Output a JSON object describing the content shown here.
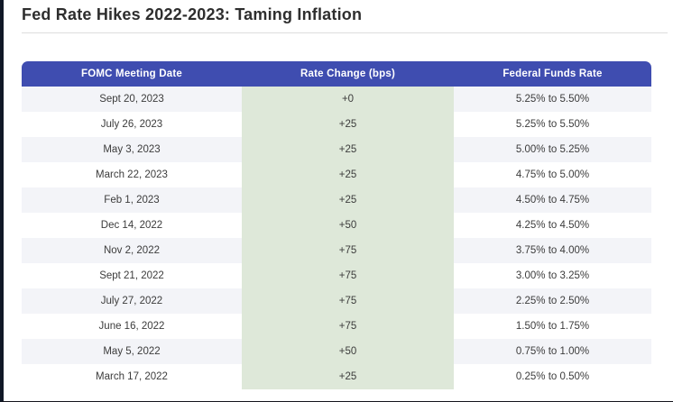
{
  "page": {
    "title": "Fed Rate Hikes 2022-2023: Taming Inflation"
  },
  "colors": {
    "header_bg": "#3F4DB0",
    "header_text": "#FFFFFF",
    "green_col_bg": "#DEE8D9",
    "alt_row_bg": "#F3F4F8",
    "row_bg": "#FFFFFF",
    "title_text": "#2E2E2E",
    "body_text": "#3C3C3C",
    "left_border": "#101826",
    "divider": "#DDDDDD"
  },
  "chart_data": {
    "type": "table",
    "title": "Fed Rate Hikes 2022-2023: Taming Inflation",
    "columns": [
      "FOMC Meeting Date",
      "Rate Change (bps)",
      "Federal Funds Rate"
    ],
    "rows": [
      [
        "Sept 20, 2023",
        "+0",
        "5.25% to 5.50%"
      ],
      [
        "July 26, 2023",
        "+25",
        "5.25% to 5.50%"
      ],
      [
        "May 3, 2023",
        "+25",
        "5.00% to 5.25%"
      ],
      [
        "March 22, 2023",
        "+25",
        "4.75% to 5.00%"
      ],
      [
        "Feb 1, 2023",
        "+25",
        "4.50% to 4.75%"
      ],
      [
        "Dec 14, 2022",
        "+50",
        "4.25% to 4.50%"
      ],
      [
        "Nov 2, 2022",
        "+75",
        "3.75% to 4.00%"
      ],
      [
        "Sept 21, 2022",
        "+75",
        "3.00% to 3.25%"
      ],
      [
        "July 27, 2022",
        "+75",
        "2.25% to 2.50%"
      ],
      [
        "June 16, 2022",
        "+75",
        "1.50% to 1.75%"
      ],
      [
        "May 5, 2022",
        "+50",
        "0.75% to 1.00%"
      ],
      [
        "March 17, 2022",
        "+25",
        "0.25% to 0.50%"
      ]
    ]
  }
}
